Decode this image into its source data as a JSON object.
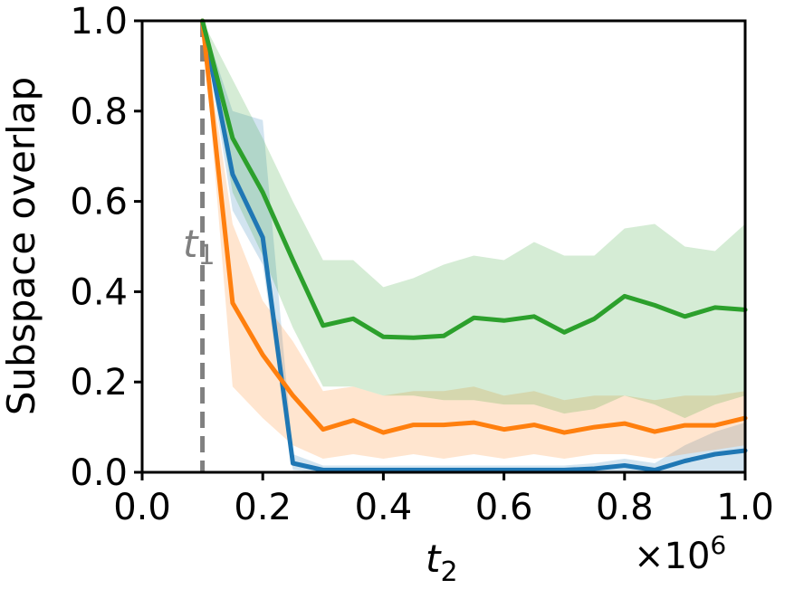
{
  "chart_data": {
    "type": "line",
    "ylabel": "Subspace overlap",
    "xlabel_var": "t",
    "xlabel_sub": "2",
    "x_multiplier_base": "×10",
    "x_multiplier_exp": "6",
    "xlim": [
      0.0,
      1.0
    ],
    "ylim": [
      0.0,
      1.0
    ],
    "xticks": [
      0.0,
      0.2,
      0.4,
      0.6,
      0.8,
      1.0
    ],
    "yticks": [
      0.0,
      0.2,
      0.4,
      0.6,
      0.8,
      1.0
    ],
    "xtick_labels": [
      "0.0",
      "0.2",
      "0.4",
      "0.6",
      "0.8",
      "1.0"
    ],
    "ytick_labels": [
      "0.0",
      "0.2",
      "0.4",
      "0.6",
      "0.8",
      "1.0"
    ],
    "grid": false,
    "vline": {
      "x": 0.1,
      "label_var": "t",
      "label_sub": "1",
      "color": "#808080"
    },
    "x": [
      0.1,
      0.15,
      0.2,
      0.25,
      0.3,
      0.35,
      0.4,
      0.45,
      0.5,
      0.55,
      0.6,
      0.65,
      0.7,
      0.75,
      0.8,
      0.85,
      0.9,
      0.95,
      1.0
    ],
    "series": [
      {
        "color": "#1f77b4",
        "values": [
          1.0,
          0.66,
          0.52,
          0.02,
          0.005,
          0.005,
          0.005,
          0.005,
          0.005,
          0.005,
          0.005,
          0.005,
          0.005,
          0.008,
          0.015,
          0.005,
          0.025,
          0.04,
          0.048
        ],
        "lower": [
          1.0,
          0.58,
          0.46,
          0.005,
          0.0,
          0.0,
          0.0,
          0.0,
          0.0,
          0.0,
          0.0,
          0.0,
          0.0,
          0.0,
          0.0,
          0.0,
          0.0,
          0.0,
          0.0
        ],
        "upper": [
          1.0,
          0.8,
          0.78,
          0.04,
          0.015,
          0.015,
          0.015,
          0.015,
          0.015,
          0.015,
          0.015,
          0.015,
          0.015,
          0.02,
          0.03,
          0.02,
          0.06,
          0.09,
          0.11
        ]
      },
      {
        "color": "#ff7f0e",
        "values": [
          1.0,
          0.375,
          0.26,
          0.17,
          0.095,
          0.115,
          0.088,
          0.105,
          0.105,
          0.11,
          0.095,
          0.105,
          0.088,
          0.1,
          0.108,
          0.09,
          0.104,
          0.104,
          0.12
        ],
        "lower": [
          1.0,
          0.19,
          0.12,
          0.06,
          0.03,
          0.04,
          0.03,
          0.04,
          0.03,
          0.04,
          0.03,
          0.04,
          0.03,
          0.04,
          0.04,
          0.03,
          0.04,
          0.05,
          0.06
        ],
        "upper": [
          1.0,
          0.55,
          0.38,
          0.29,
          0.18,
          0.19,
          0.17,
          0.18,
          0.18,
          0.19,
          0.17,
          0.18,
          0.16,
          0.17,
          0.17,
          0.16,
          0.17,
          0.17,
          0.18
        ]
      },
      {
        "color": "#2ca02c",
        "values": [
          1.0,
          0.74,
          0.62,
          0.47,
          0.325,
          0.34,
          0.3,
          0.298,
          0.302,
          0.342,
          0.336,
          0.345,
          0.31,
          0.34,
          0.39,
          0.37,
          0.345,
          0.365,
          0.36
        ],
        "lower": [
          1.0,
          0.62,
          0.48,
          0.32,
          0.19,
          0.19,
          0.17,
          0.17,
          0.16,
          0.16,
          0.15,
          0.15,
          0.13,
          0.14,
          0.17,
          0.15,
          0.12,
          0.15,
          0.17
        ],
        "upper": [
          1.0,
          0.87,
          0.74,
          0.6,
          0.47,
          0.47,
          0.41,
          0.43,
          0.46,
          0.48,
          0.47,
          0.51,
          0.48,
          0.48,
          0.54,
          0.55,
          0.5,
          0.49,
          0.55
        ]
      }
    ]
  }
}
